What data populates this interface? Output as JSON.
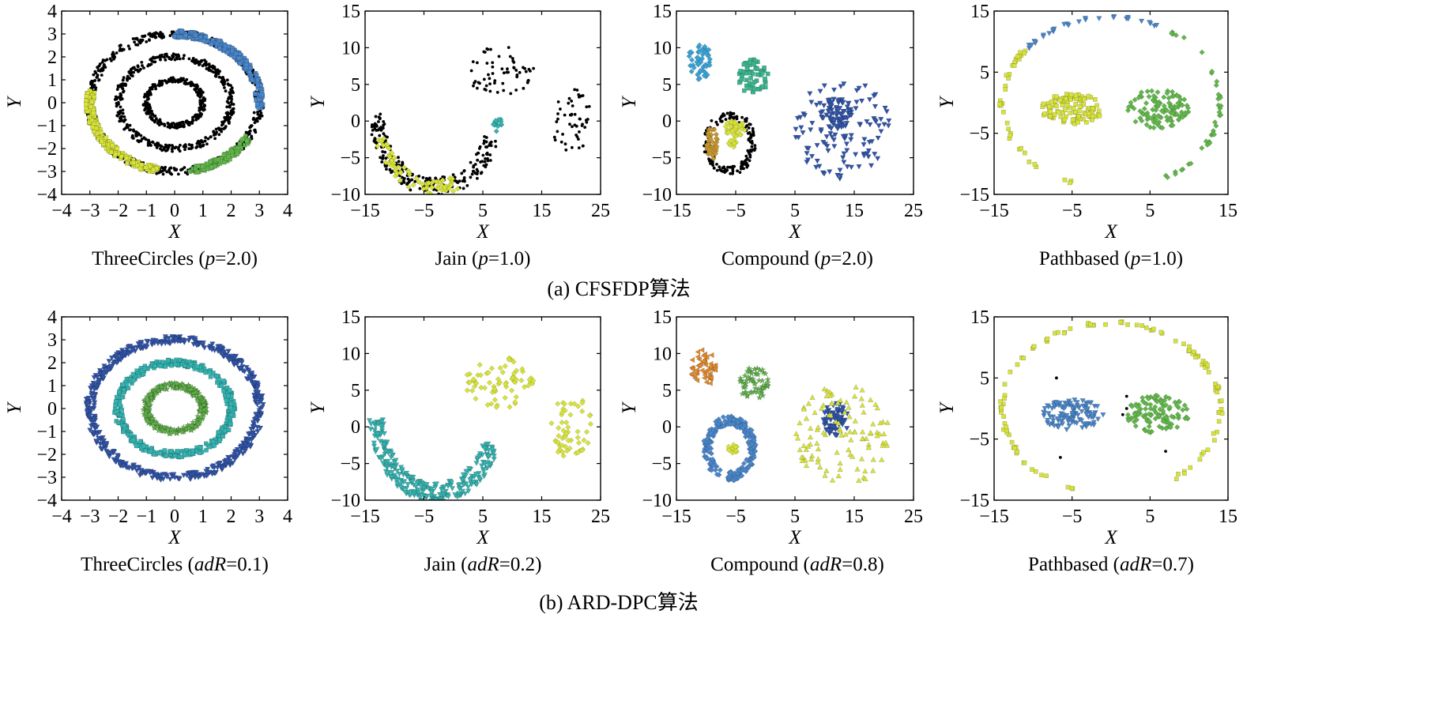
{
  "figure": {
    "row_captions": [
      "(a) CFSFDP算法",
      "(b) ARD-DPC算法"
    ]
  },
  "chart_data": [
    {
      "type": "scatter",
      "id": "a1",
      "dataset": "ThreeCircles",
      "caption_prefix": "ThreeCircles (",
      "caption_param": "p",
      "caption_value": "=2.0)",
      "xlabel": "X",
      "ylabel": "Y",
      "xlim": [
        -4,
        4
      ],
      "ylim": [
        -4,
        4
      ],
      "xticks": [
        -4,
        -3,
        -2,
        -1,
        0,
        1,
        2,
        3,
        4
      ],
      "yticks": [
        -4,
        -3,
        -2,
        -1,
        0,
        1,
        2,
        3,
        4
      ],
      "xtick_labels": [
        "−4",
        "−3",
        "−2",
        "−1",
        "0",
        "1",
        "2",
        "3",
        "4"
      ],
      "ytick_labels": [
        "−4",
        "−3",
        "−2",
        "−1",
        "0",
        "1",
        "2",
        "3",
        "4"
      ],
      "grid": false,
      "series": [
        {
          "shape": "dot",
          "color": "#000000",
          "ring": {
            "cx": 0,
            "cy": 0,
            "r": 3.0,
            "w": 0.32,
            "a0": 0,
            "a1": 360,
            "n": 520
          }
        },
        {
          "shape": "dot",
          "color": "#000000",
          "ring": {
            "cx": 0,
            "cy": 0,
            "r": 2.0,
            "w": 0.28,
            "a0": 0,
            "a1": 360,
            "n": 380
          }
        },
        {
          "shape": "dot",
          "color": "#000000",
          "ring": {
            "cx": 0,
            "cy": 0,
            "r": 1.0,
            "w": 0.22,
            "a0": 0,
            "a1": 360,
            "n": 260
          }
        },
        {
          "shape": "square",
          "color": "#4a86c9",
          "ring": {
            "cx": 0,
            "cy": 0,
            "r": 3.0,
            "w": 0.3,
            "a0": -5,
            "a1": 90,
            "n": 240
          }
        },
        {
          "shape": "square",
          "color": "#d7e33a",
          "ring": {
            "cx": 0,
            "cy": 0,
            "r": 3.0,
            "w": 0.3,
            "a0": 170,
            "a1": 260,
            "n": 200
          }
        },
        {
          "shape": "square",
          "color": "#62b64b",
          "ring": {
            "cx": 0,
            "cy": 0,
            "r": 3.0,
            "w": 0.3,
            "a0": 280,
            "a1": 330,
            "n": 110
          }
        }
      ]
    },
    {
      "type": "scatter",
      "id": "a2",
      "dataset": "Jain",
      "caption_prefix": "Jain (",
      "caption_param": "p",
      "caption_value": "=1.0)",
      "xlabel": "X",
      "ylabel": "Y",
      "xlim": [
        -15,
        25
      ],
      "ylim": [
        -10,
        15
      ],
      "xticks": [
        -15,
        -5,
        5,
        15,
        25
      ],
      "yticks": [
        -10,
        -5,
        0,
        5,
        10,
        15
      ],
      "xtick_labels": [
        "−15",
        "−5",
        "5",
        "15",
        "25"
      ],
      "ytick_labels": [
        "−10",
        "−5",
        "0",
        "5",
        "10",
        "15"
      ],
      "grid": false,
      "series": [
        {
          "shape": "dot",
          "color": "#000000",
          "arc": {
            "cx": -3,
            "cy": 1,
            "r": 10,
            "w": 2.6,
            "a0": 180,
            "a1": 340,
            "n": 230
          }
        },
        {
          "shape": "dot",
          "color": "#000000",
          "cloud": {
            "cx": 8,
            "cy": 7,
            "rx": 6,
            "ry": 3.5,
            "n": 60
          }
        },
        {
          "shape": "dot",
          "color": "#000000",
          "cloud": {
            "cx": 20,
            "cy": 0,
            "rx": 3.5,
            "ry": 4.5,
            "n": 50
          }
        },
        {
          "shape": "diamond",
          "color": "#d7e33a",
          "arc": {
            "cx": -3,
            "cy": 1,
            "r": 10,
            "w": 2.0,
            "a0": 200,
            "a1": 290,
            "n": 80
          }
        },
        {
          "shape": "diamond",
          "color": "#34b3b0",
          "cloud": {
            "cx": 7.5,
            "cy": -0.5,
            "rx": 0.9,
            "ry": 1.0,
            "n": 14
          }
        }
      ]
    },
    {
      "type": "scatter",
      "id": "a3",
      "dataset": "Compound",
      "caption_prefix": "Compound (",
      "caption_param": "p",
      "caption_value": "=2.0)",
      "xlabel": "X",
      "ylabel": "Y",
      "xlim": [
        -15,
        25
      ],
      "ylim": [
        -10,
        15
      ],
      "xticks": [
        -15,
        -5,
        5,
        15,
        25
      ],
      "yticks": [
        -10,
        -5,
        0,
        5,
        10,
        15
      ],
      "xtick_labels": [
        "−15",
        "−5",
        "5",
        "15",
        "25"
      ],
      "ytick_labels": [
        "−10",
        "−5",
        "0",
        "5",
        "10",
        "15"
      ],
      "grid": false,
      "series": [
        {
          "shape": "diamond",
          "color": "#3ba2d4",
          "cloud": {
            "cx": -11,
            "cy": 8,
            "rx": 2.2,
            "ry": 2.5,
            "n": 50
          }
        },
        {
          "shape": "square",
          "color": "#3bb58e",
          "cloud": {
            "cx": -2,
            "cy": 6,
            "rx": 2.6,
            "ry": 2.4,
            "n": 60
          }
        },
        {
          "shape": "dot",
          "color": "#000000",
          "ring": {
            "cx": -6,
            "cy": -3,
            "r": 3.8,
            "w": 1.2,
            "a0": 0,
            "a1": 360,
            "n": 160
          }
        },
        {
          "shape": "diamond",
          "color": "#c4962f",
          "cloud": {
            "cx": -9,
            "cy": -3,
            "rx": 0.9,
            "ry": 2.3,
            "n": 40
          }
        },
        {
          "shape": "diamond",
          "color": "#d7e33a",
          "cloud": {
            "cx": -5,
            "cy": -1,
            "rx": 1.8,
            "ry": 1.2,
            "n": 40
          }
        },
        {
          "shape": "diamond",
          "color": "#d7e33a",
          "cloud": {
            "cx": -5.5,
            "cy": -3,
            "rx": 0.8,
            "ry": 0.6,
            "n": 10
          }
        },
        {
          "shape": "tri-down",
          "color": "#3154a8",
          "cloud": {
            "cx": 13,
            "cy": -1,
            "rx": 8,
            "ry": 7,
            "n": 120
          }
        },
        {
          "shape": "tri-down",
          "color": "#3154a8",
          "cloud": {
            "cx": 12,
            "cy": 1,
            "rx": 2.5,
            "ry": 2.2,
            "n": 60
          }
        }
      ]
    },
    {
      "type": "scatter",
      "id": "a4",
      "dataset": "Pathbased",
      "caption_prefix": "Pathbased (",
      "caption_param": "p",
      "caption_value": "=1.0)",
      "xlabel": "X",
      "ylabel": "Y",
      "xlim": [
        -15,
        15
      ],
      "ylim": [
        -15,
        15
      ],
      "xticks": [
        -15,
        -5,
        5,
        15
      ],
      "yticks": [
        -15,
        -5,
        5,
        15
      ],
      "xtick_labels": [
        "−15",
        "−5",
        "5",
        "15"
      ],
      "ytick_labels": [
        "−15",
        "−5",
        "5",
        "15"
      ],
      "grid": false,
      "series": [
        {
          "shape": "tri-down",
          "color": "#4a86c9",
          "arc": {
            "cx": 0,
            "cy": 0,
            "r": 14,
            "w": 0.5,
            "a0": 60,
            "a1": 140,
            "n": 30
          }
        },
        {
          "shape": "diamond",
          "color": "#62b64b",
          "arc": {
            "cx": 0,
            "cy": 0,
            "r": 14,
            "w": 0.6,
            "a0": -60,
            "a1": 58,
            "n": 40
          }
        },
        {
          "shape": "square",
          "color": "#d7e33a",
          "arc": {
            "cx": 0,
            "cy": 0,
            "r": 14,
            "w": 0.6,
            "a0": 142,
            "a1": 250,
            "n": 38
          }
        },
        {
          "shape": "square",
          "color": "#d7e33a",
          "cloud": {
            "cx": -5,
            "cy": -1,
            "rx": 4,
            "ry": 2.5,
            "n": 110
          }
        },
        {
          "shape": "diamond",
          "color": "#62b64b",
          "cloud": {
            "cx": 6,
            "cy": -1,
            "rx": 4,
            "ry": 3.2,
            "n": 110
          }
        }
      ]
    },
    {
      "type": "scatter",
      "id": "b1",
      "dataset": "ThreeCircles",
      "caption_prefix": "ThreeCircles (",
      "caption_param": "adR",
      "caption_value": "=0.1)",
      "xlabel": "X",
      "ylabel": "Y",
      "xlim": [
        -4,
        4
      ],
      "ylim": [
        -4,
        4
      ],
      "xticks": [
        -4,
        -3,
        -2,
        -1,
        0,
        1,
        2,
        3,
        4
      ],
      "yticks": [
        -4,
        -3,
        -2,
        -1,
        0,
        1,
        2,
        3,
        4
      ],
      "xtick_labels": [
        "−4",
        "−3",
        "−2",
        "−1",
        "0",
        "1",
        "2",
        "3",
        "4"
      ],
      "ytick_labels": [
        "−4",
        "−3",
        "−2",
        "−1",
        "0",
        "1",
        "2",
        "3",
        "4"
      ],
      "grid": false,
      "series": [
        {
          "shape": "tri-down",
          "color": "#3154a8",
          "ring": {
            "cx": 0,
            "cy": 0,
            "r": 3.0,
            "w": 0.32,
            "a0": 0,
            "a1": 360,
            "n": 560
          }
        },
        {
          "shape": "square",
          "color": "#34b3b0",
          "ring": {
            "cx": 0,
            "cy": 0,
            "r": 2.0,
            "w": 0.28,
            "a0": 0,
            "a1": 360,
            "n": 400
          }
        },
        {
          "shape": "star",
          "color": "#62b64b",
          "ring": {
            "cx": 0,
            "cy": 0,
            "r": 1.0,
            "w": 0.25,
            "a0": 0,
            "a1": 360,
            "n": 300
          }
        }
      ]
    },
    {
      "type": "scatter",
      "id": "b2",
      "dataset": "Jain",
      "caption_prefix": "Jain (",
      "caption_param": "adR",
      "caption_value": "=0.2)",
      "xlabel": "X",
      "ylabel": "Y",
      "xlim": [
        -15,
        25
      ],
      "ylim": [
        -10,
        15
      ],
      "xticks": [
        -15,
        -5,
        5,
        15,
        25
      ],
      "yticks": [
        -10,
        -5,
        0,
        5,
        10,
        15
      ],
      "xtick_labels": [
        "−15",
        "−5",
        "5",
        "15",
        "25"
      ],
      "ytick_labels": [
        "−10",
        "−5",
        "0",
        "5",
        "10",
        "15"
      ],
      "grid": false,
      "series": [
        {
          "shape": "tri-down",
          "color": "#34b3b0",
          "arc": {
            "cx": -3,
            "cy": 1,
            "r": 10,
            "w": 2.6,
            "a0": 180,
            "a1": 340,
            "n": 280
          }
        },
        {
          "shape": "diamond",
          "color": "#d7e33a",
          "cloud": {
            "cx": 8,
            "cy": 6,
            "rx": 6,
            "ry": 3.5,
            "n": 70
          }
        },
        {
          "shape": "diamond",
          "color": "#d7e33a",
          "cloud": {
            "cx": 20,
            "cy": 0,
            "rx": 3.5,
            "ry": 4.5,
            "n": 55
          }
        }
      ]
    },
    {
      "type": "scatter",
      "id": "b3",
      "dataset": "Compound",
      "caption_prefix": "Compound (",
      "caption_param": "adR",
      "caption_value": "=0.8)",
      "xlabel": "X",
      "ylabel": "Y",
      "xlim": [
        -15,
        25
      ],
      "ylim": [
        -10,
        15
      ],
      "xticks": [
        -15,
        -5,
        5,
        15,
        25
      ],
      "yticks": [
        -10,
        -5,
        0,
        5,
        10,
        15
      ],
      "xtick_labels": [
        "−15",
        "−5",
        "5",
        "15",
        "25"
      ],
      "ytick_labels": [
        "−10",
        "−5",
        "0",
        "5",
        "10",
        "15"
      ],
      "grid": false,
      "series": [
        {
          "shape": "tri-left",
          "color": "#e08a2e",
          "cloud": {
            "cx": -10.5,
            "cy": 8,
            "rx": 2.2,
            "ry": 2.6,
            "n": 50
          }
        },
        {
          "shape": "star",
          "color": "#62b64b",
          "cloud": {
            "cx": -2,
            "cy": 6,
            "rx": 2.6,
            "ry": 2.4,
            "n": 60
          }
        },
        {
          "shape": "diamond",
          "color": "#4a86c9",
          "ring": {
            "cx": -6,
            "cy": -3,
            "r": 3.8,
            "w": 1.4,
            "a0": 0,
            "a1": 360,
            "n": 220
          }
        },
        {
          "shape": "diamond",
          "color": "#d7e33a",
          "cloud": {
            "cx": -5.5,
            "cy": -3,
            "rx": 1,
            "ry": 0.6,
            "n": 14
          }
        },
        {
          "shape": "tri-down",
          "color": "#3154a8",
          "cloud": {
            "cx": 12,
            "cy": 1,
            "rx": 2.5,
            "ry": 2.2,
            "n": 70
          }
        },
        {
          "shape": "tri-up",
          "color": "#d7e33a",
          "cloud": {
            "cx": 13,
            "cy": -1,
            "rx": 8,
            "ry": 7,
            "n": 110
          }
        }
      ]
    },
    {
      "type": "scatter",
      "id": "b4",
      "dataset": "Pathbased",
      "caption_prefix": "Pathbased (",
      "caption_param": "adR",
      "caption_value": "=0.7)",
      "xlabel": "X",
      "ylabel": "Y",
      "xlim": [
        -15,
        15
      ],
      "ylim": [
        -15,
        15
      ],
      "xticks": [
        -15,
        -5,
        5,
        15
      ],
      "yticks": [
        -15,
        -5,
        5,
        15
      ],
      "xtick_labels": [
        "−15",
        "−5",
        "5",
        "15"
      ],
      "ytick_labels": [
        "−15",
        "−5",
        "5",
        "15"
      ],
      "grid": false,
      "series": [
        {
          "shape": "square",
          "color": "#d7e33a",
          "arc": {
            "cx": 0,
            "cy": 0,
            "r": 14,
            "w": 0.6,
            "a0": -60,
            "a1": 250,
            "n": 110
          }
        },
        {
          "shape": "tri-down",
          "color": "#4a86c9",
          "cloud": {
            "cx": -5,
            "cy": -1,
            "rx": 4,
            "ry": 2.5,
            "n": 110
          }
        },
        {
          "shape": "diamond",
          "color": "#62b64b",
          "cloud": {
            "cx": 6,
            "cy": -1,
            "rx": 4,
            "ry": 3.2,
            "n": 110
          }
        },
        {
          "shape": "dot",
          "color": "#000000",
          "points": [
            [
              -7,
              5
            ],
            [
              1.5,
              -1
            ],
            [
              2,
              0
            ],
            [
              -6.5,
              -8
            ],
            [
              2,
              2
            ],
            [
              7,
              -7
            ]
          ]
        }
      ]
    }
  ]
}
